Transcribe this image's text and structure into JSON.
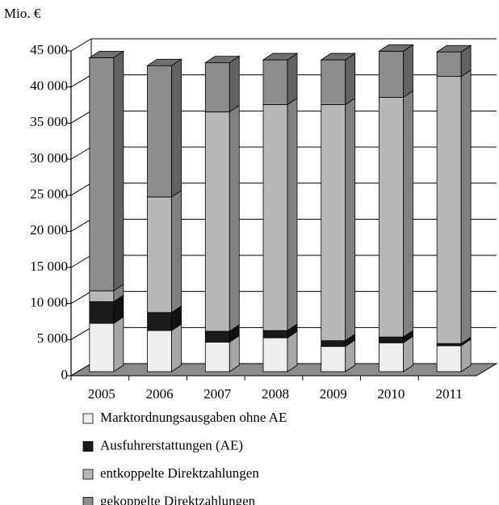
{
  "chart_data": {
    "type": "bar3d_stacked",
    "y_label": "Mio. €",
    "categories": [
      "2005",
      "2006",
      "2007",
      "2008",
      "2009",
      "2010",
      "2011"
    ],
    "series": [
      {
        "name": "Marktordnungsausgaben ohne AE",
        "color": "#eeeeee",
        "values": [
          6700,
          5700,
          4100,
          4700,
          3500,
          4000,
          3600
        ]
      },
      {
        "name": "Ausfuhrerstattungen (AE)",
        "color": "#1a1a1a",
        "values": [
          3000,
          2500,
          1500,
          1000,
          800,
          800,
          300
        ]
      },
      {
        "name": "entkoppelte Direktzahlungen",
        "color": "#b8b8b8",
        "values": [
          1500,
          16000,
          30400,
          31300,
          32700,
          33200,
          37000
        ]
      },
      {
        "name": "gekoppelte Direktzahlungen",
        "color": "#8c8c8c",
        "values": [
          32300,
          18200,
          6800,
          6200,
          6200,
          6400,
          3400
        ]
      }
    ],
    "ylim": [
      0,
      45000
    ],
    "yticks": [
      {
        "value": 0,
        "label": "0"
      },
      {
        "value": 5000,
        "label": "5 000"
      },
      {
        "value": 10000,
        "label": "10 000"
      },
      {
        "value": 15000,
        "label": "15 000"
      },
      {
        "value": 20000,
        "label": "20 000"
      },
      {
        "value": 25000,
        "label": "25 000"
      },
      {
        "value": 30000,
        "label": "30 000"
      },
      {
        "value": 35000,
        "label": "35 000"
      },
      {
        "value": 40000,
        "label": "40 000"
      },
      {
        "value": 45000,
        "label": "45 000"
      }
    ],
    "grid": true
  }
}
